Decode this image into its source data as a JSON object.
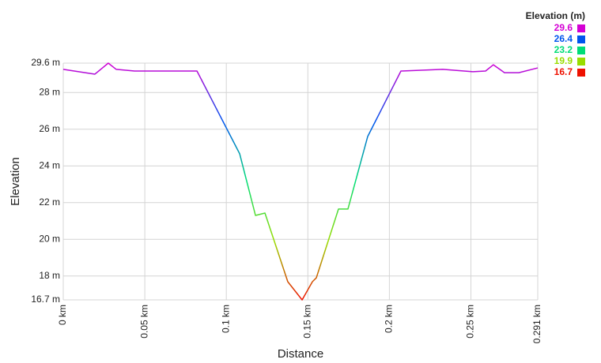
{
  "chart_data": {
    "type": "line",
    "y_label": "Elevation",
    "x_label": "Distance",
    "x": [
      0,
      0.0194,
      0.0276,
      0.0325,
      0.0437,
      0.082,
      0.1082,
      0.1179,
      0.1237,
      0.1377,
      0.1465,
      0.1528,
      0.1552,
      0.1688,
      0.1746,
      0.1867,
      0.2071,
      0.2328,
      0.2512,
      0.259,
      0.2638,
      0.2706,
      0.2794,
      0.291
    ],
    "series": [
      {
        "values": [
          29.26,
          29.0,
          29.6,
          29.26,
          29.17,
          29.17,
          24.66,
          21.3,
          21.43,
          17.69,
          16.7,
          17.69,
          17.9,
          21.65,
          21.65,
          25.6,
          29.17,
          29.26,
          29.13,
          29.17,
          29.51,
          29.08,
          29.08,
          29.34
        ]
      }
    ],
    "xlim": [
      0,
      0.291
    ],
    "xticks": [
      {
        "value": 0,
        "label": "0 km"
      },
      {
        "value": 0.05,
        "label": "0.05 km"
      },
      {
        "value": 0.1,
        "label": "0.1 km"
      },
      {
        "value": 0.15,
        "label": "0.15 km"
      },
      {
        "value": 0.2,
        "label": "0.2 km"
      },
      {
        "value": 0.25,
        "label": "0.25 km"
      },
      {
        "value": 0.291,
        "label": "0.291 km"
      }
    ],
    "ylim": [
      16.7,
      29.6
    ],
    "yticks": [
      {
        "value": 16.7,
        "label": "16.7 m"
      },
      {
        "value": 18,
        "label": "18 m"
      },
      {
        "value": 20,
        "label": "20 m"
      },
      {
        "value": 22,
        "label": "22 m"
      },
      {
        "value": 24,
        "label": "24 m"
      },
      {
        "value": 26,
        "label": "26 m"
      },
      {
        "value": 28,
        "label": "28 m"
      },
      {
        "value": 29.6,
        "label": "29.6 m"
      }
    ],
    "grid": true,
    "legend": {
      "title": "Elevation (m)",
      "values": [
        29.6,
        26.4,
        23.2,
        19.9,
        16.7
      ],
      "colors": [
        "#d400d4",
        "#0055ee",
        "#00dd77",
        "#99dd00",
        "#ee1100"
      ]
    }
  }
}
